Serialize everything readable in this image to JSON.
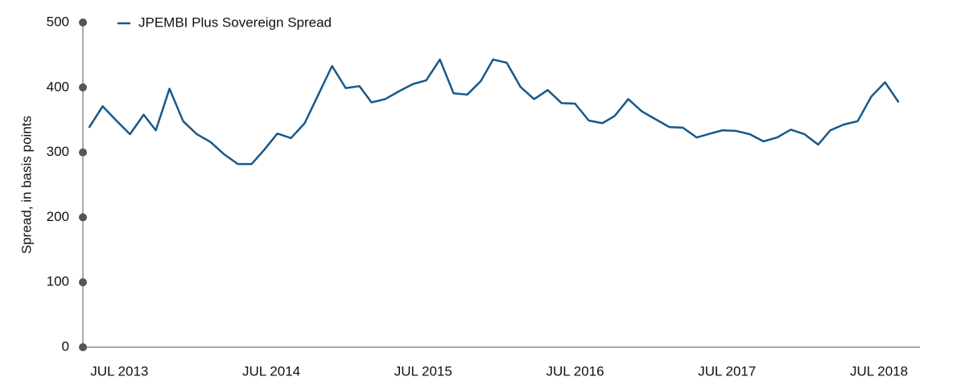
{
  "chart_data": {
    "type": "line",
    "legend": "top-left",
    "y_label": "Spread, in basis points",
    "x": [
      2013.3,
      2013.39,
      2013.48,
      2013.57,
      2013.66,
      2013.74,
      2013.83,
      2013.92,
      2014.01,
      2014.1,
      2014.19,
      2014.28,
      2014.37,
      2014.45,
      2014.54,
      2014.63,
      2014.72,
      2014.81,
      2014.9,
      2014.99,
      2015.08,
      2015.16,
      2015.25,
      2015.34,
      2015.43,
      2015.52,
      2015.61,
      2015.7,
      2015.79,
      2015.88,
      2015.96,
      2016.05,
      2016.14,
      2016.23,
      2016.32,
      2016.41,
      2016.5,
      2016.59,
      2016.68,
      2016.76,
      2016.85,
      2016.94,
      2017.03,
      2017.12,
      2017.21,
      2017.3,
      2017.39,
      2017.47,
      2017.56,
      2017.65,
      2017.74,
      2017.83,
      2017.92,
      2018.01,
      2018.1,
      2018.18,
      2018.27,
      2018.36,
      2018.45,
      2018.54,
      2018.63
    ],
    "series": [
      {
        "name": "JPEMBI Plus Sovereign Spread",
        "color": "#17598a",
        "values": [
          338,
          371,
          349,
          328,
          358,
          334,
          398,
          348,
          328,
          316,
          297,
          282,
          282,
          303,
          329,
          322,
          345,
          389,
          433,
          399,
          402,
          377,
          382,
          394,
          405,
          411,
          443,
          391,
          389,
          410,
          443,
          438,
          401,
          382,
          396,
          376,
          375,
          349,
          345,
          356,
          382,
          363,
          351,
          339,
          338,
          323,
          329,
          334,
          333,
          328,
          317,
          323,
          335,
          328,
          312,
          334,
          343,
          348,
          386,
          408,
          377
        ]
      }
    ],
    "xlim": [
      2013.26,
      2018.77
    ],
    "xticks": [
      {
        "value": 2013.5,
        "label": "JUL 2013"
      },
      {
        "value": 2014.5,
        "label": "JUL 2014"
      },
      {
        "value": 2015.5,
        "label": "JUL 2015"
      },
      {
        "value": 2016.5,
        "label": "JUL 2016"
      },
      {
        "value": 2017.5,
        "label": "JUL 2017"
      },
      {
        "value": 2018.5,
        "label": "JUL 2018"
      }
    ],
    "ylim": [
      0,
      500
    ],
    "yticks": [
      0,
      100,
      200,
      300,
      400,
      500
    ]
  }
}
